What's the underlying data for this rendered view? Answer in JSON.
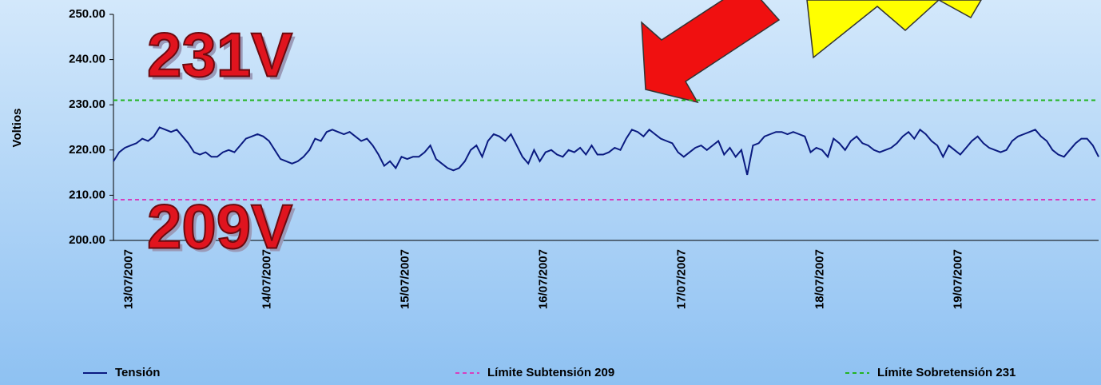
{
  "chart_data": {
    "type": "line",
    "y_label": "Voltios",
    "categories": [
      null,
      null,
      "13/07/2007",
      null,
      null,
      null,
      null,
      null,
      null,
      null,
      null,
      null,
      null,
      null,
      null,
      null,
      null,
      null,
      null,
      null,
      null,
      null,
      null,
      null,
      null,
      null,
      "14/07/2007",
      null,
      null,
      null,
      null,
      null,
      null,
      null,
      null,
      null,
      null,
      null,
      null,
      null,
      null,
      null,
      null,
      null,
      null,
      null,
      null,
      null,
      null,
      null,
      "15/07/2007",
      null,
      null,
      null,
      null,
      null,
      null,
      null,
      null,
      null,
      null,
      null,
      null,
      null,
      null,
      null,
      null,
      null,
      null,
      null,
      null,
      null,
      null,
      null,
      "16/07/2007",
      null,
      null,
      null,
      null,
      null,
      null,
      null,
      null,
      null,
      null,
      null,
      null,
      null,
      null,
      null,
      null,
      null,
      null,
      null,
      null,
      null,
      null,
      null,
      "17/07/2007",
      null,
      null,
      null,
      null,
      null,
      null,
      null,
      null,
      null,
      null,
      null,
      null,
      null,
      null,
      null,
      null,
      null,
      null,
      null,
      null,
      null,
      null,
      null,
      "18/07/2007",
      null,
      null,
      null,
      null,
      null,
      null,
      null,
      null,
      null,
      null,
      null,
      null,
      null,
      null,
      null,
      null,
      null,
      null,
      null,
      null,
      null,
      null,
      null,
      "19/07/2007",
      null,
      null,
      null,
      null,
      null,
      null,
      null,
      null,
      null,
      null,
      null,
      null,
      null,
      null,
      null,
      null,
      null,
      null,
      null,
      null,
      null,
      null,
      null,
      null,
      null
    ],
    "series": [
      {
        "name": "Tensión",
        "color": "#0a1a80",
        "values": [
          217.5,
          219.5,
          220.5,
          221,
          221.5,
          222.5,
          222,
          223,
          225,
          224.5,
          224,
          224.5,
          223,
          221.5,
          219.5,
          219,
          219.5,
          218.5,
          218.5,
          219.5,
          220,
          219.5,
          221,
          222.5,
          223,
          223.5,
          223,
          222,
          220,
          218,
          217.5,
          217,
          217.5,
          218.5,
          220,
          222.5,
          222,
          224,
          224.5,
          224,
          223.5,
          224,
          223,
          222,
          222.5,
          221,
          219,
          216.5,
          217.5,
          216,
          218.5,
          218,
          218.5,
          218.5,
          219.5,
          221,
          218,
          217,
          216,
          215.5,
          216,
          217.5,
          220,
          221,
          218.5,
          222,
          223.5,
          223,
          222,
          223.5,
          221,
          218.5,
          217,
          220,
          217.5,
          219.5,
          220,
          219,
          218.5,
          220,
          219.5,
          220.5,
          219,
          221,
          219,
          219,
          219.5,
          220.5,
          220,
          222.5,
          224.5,
          224,
          223,
          224.5,
          223.5,
          222.5,
          222,
          221.5,
          219.5,
          218.5,
          219.5,
          220.5,
          221,
          220,
          221,
          222,
          219,
          220.5,
          218.5,
          220,
          214.5,
          221,
          221.5,
          223,
          223.5,
          224,
          224,
          223.5,
          224,
          223.5,
          223,
          219.5,
          220.5,
          220,
          218.5,
          222.5,
          221.5,
          220,
          222,
          223,
          221.5,
          221,
          220,
          219.5,
          220,
          220.5,
          221.5,
          223,
          224,
          222.5,
          224.5,
          223.5,
          222,
          221,
          218.5,
          221,
          220,
          219,
          220.5,
          222,
          223,
          221.5,
          220.5,
          220,
          219.5,
          220,
          222,
          223,
          223.5,
          224,
          224.5,
          223,
          222,
          220,
          219,
          218.5,
          220,
          221.5,
          222.5,
          222.5,
          221,
          218.5
        ]
      }
    ],
    "reference_lines": [
      {
        "name": "Límite Subtensión 209",
        "value": 209,
        "color": "#d63fbf"
      },
      {
        "name": "Límite Sobretensión 231",
        "value": 231,
        "color": "#22b422"
      }
    ],
    "annotations": [
      "231V",
      "209V"
    ],
    "ylim": [
      200,
      250
    ],
    "yticks": [
      {
        "value": 200,
        "label": "200.00"
      },
      {
        "value": 210,
        "label": "210.00"
      },
      {
        "value": 220,
        "label": "220.00"
      },
      {
        "value": 230,
        "label": "230.00"
      },
      {
        "value": 240,
        "label": "240.00"
      },
      {
        "value": 250,
        "label": "250.00"
      }
    ]
  }
}
